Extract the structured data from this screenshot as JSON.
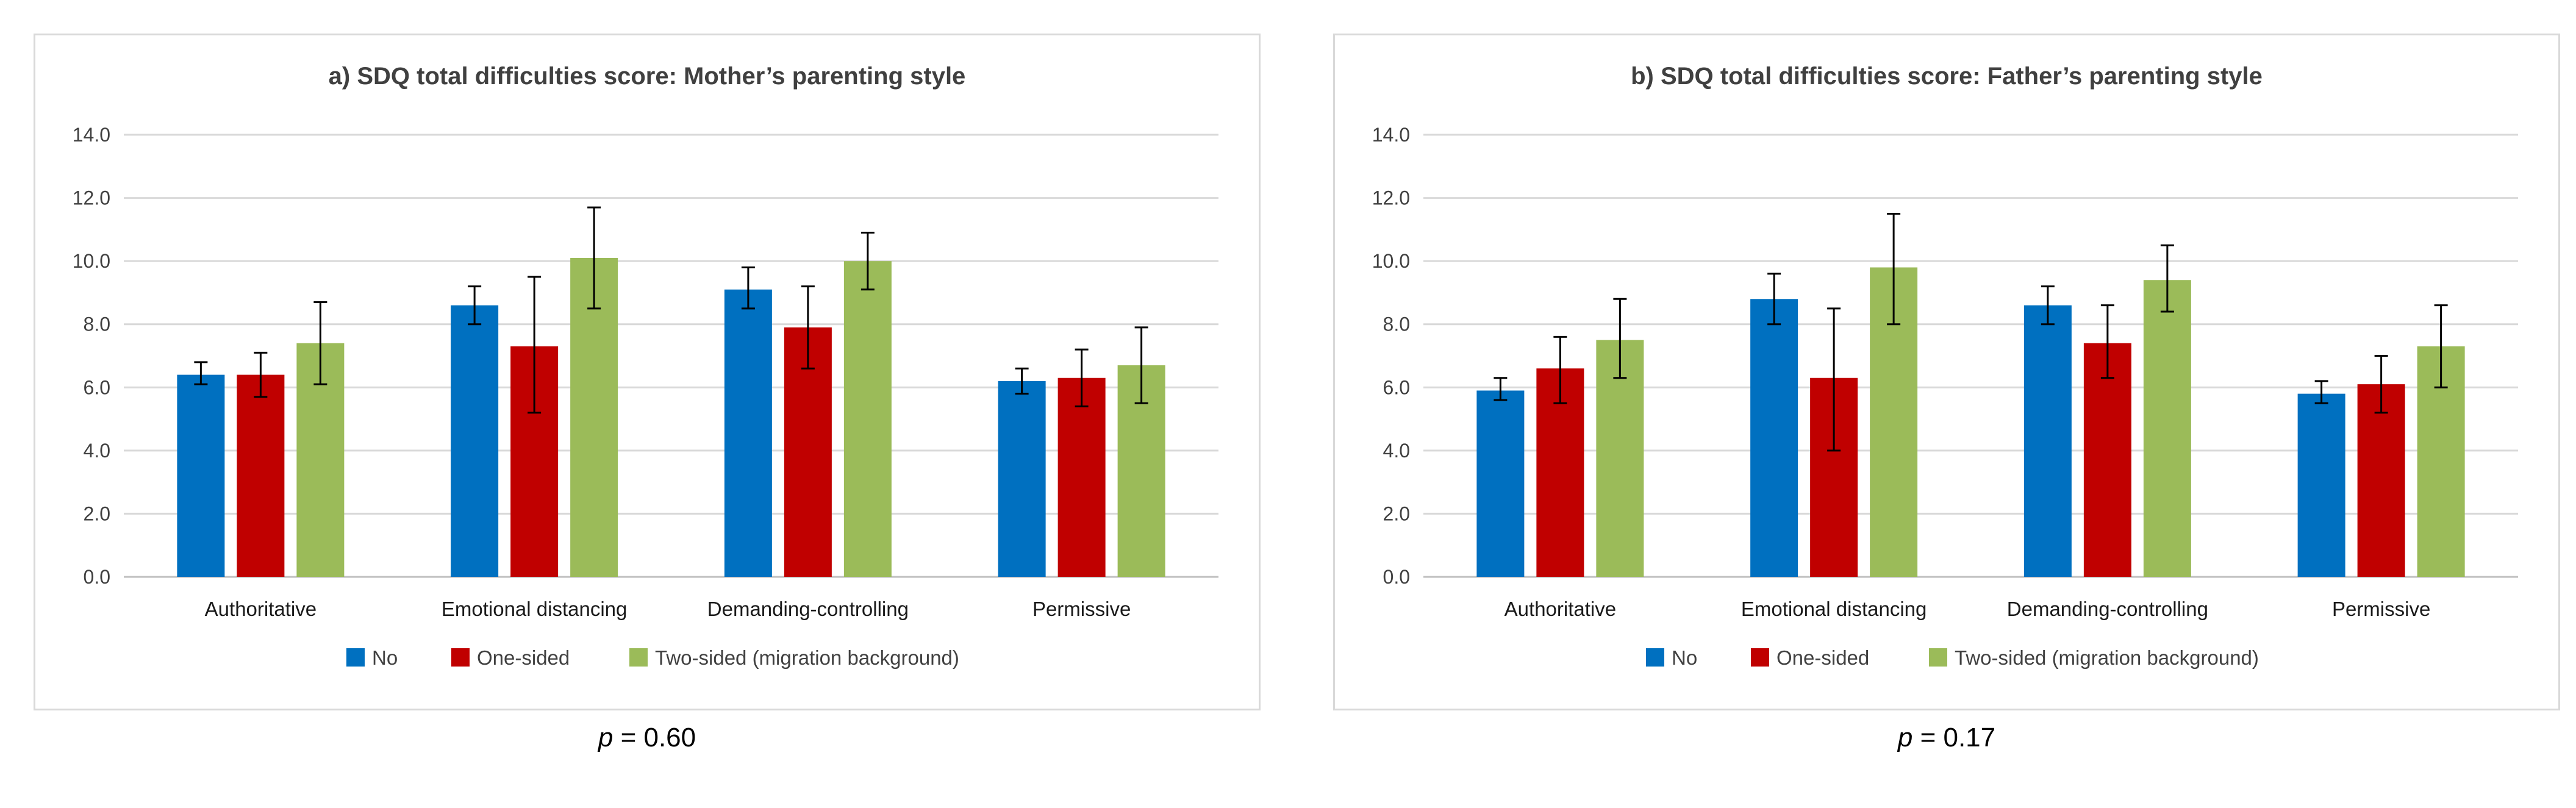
{
  "colors": {
    "No": "#0070c0",
    "One-sided": "#c00000",
    "Two-sided (migration background)": "#9bbb59",
    "grid": "#d9d9d9",
    "axis": "#bfbfbf",
    "error": "#000000"
  },
  "chart_data": [
    {
      "type": "bar",
      "title": "a) SDQ total difficulties score: Mother’s parenting style",
      "xlabel": "",
      "ylabel": "",
      "ylim": [
        0,
        14
      ],
      "yticks": [
        "0.0",
        "2.0",
        "4.0",
        "6.0",
        "8.0",
        "10.0",
        "12.0",
        "14.0"
      ],
      "categories": [
        "Authoritative",
        "Emotional distancing",
        "Demanding-controlling",
        "Permissive"
      ],
      "series": [
        {
          "name": "No",
          "values": [
            6.4,
            8.6,
            9.1,
            6.2
          ],
          "err_low": [
            6.1,
            8.0,
            8.5,
            5.8
          ],
          "err_high": [
            6.8,
            9.2,
            9.8,
            6.6
          ]
        },
        {
          "name": "One-sided",
          "values": [
            6.4,
            7.3,
            7.9,
            6.3
          ],
          "err_low": [
            5.7,
            5.2,
            6.6,
            5.4
          ],
          "err_high": [
            7.1,
            9.5,
            9.2,
            7.2
          ]
        },
        {
          "name": "Two-sided  (migration background)",
          "values": [
            7.4,
            10.1,
            10.0,
            6.7
          ],
          "err_low": [
            6.1,
            8.5,
            9.1,
            5.5
          ],
          "err_high": [
            8.7,
            11.7,
            10.9,
            7.9
          ]
        }
      ],
      "legend_position": "bottom",
      "p_value": "p = 0.60"
    },
    {
      "type": "bar",
      "title": "b) SDQ total difficulties score: Father’s parenting style",
      "xlabel": "",
      "ylabel": "",
      "ylim": [
        0,
        14
      ],
      "yticks": [
        "0.0",
        "2.0",
        "4.0",
        "6.0",
        "8.0",
        "10.0",
        "12.0",
        "14.0"
      ],
      "categories": [
        "Authoritative",
        "Emotional distancing",
        "Demanding-controlling",
        "Permissive"
      ],
      "series": [
        {
          "name": "No",
          "values": [
            5.9,
            8.8,
            8.6,
            5.8
          ],
          "err_low": [
            5.6,
            8.0,
            8.0,
            5.5
          ],
          "err_high": [
            6.3,
            9.6,
            9.2,
            6.2
          ]
        },
        {
          "name": "One-sided",
          "values": [
            6.6,
            6.3,
            7.4,
            6.1
          ],
          "err_low": [
            5.5,
            4.0,
            6.3,
            5.2
          ],
          "err_high": [
            7.6,
            8.5,
            8.6,
            7.0
          ]
        },
        {
          "name": "Two-sided (migration background)",
          "values": [
            7.5,
            9.8,
            9.4,
            7.3
          ],
          "err_low": [
            6.3,
            8.0,
            8.4,
            6.0
          ],
          "err_high": [
            8.8,
            11.5,
            10.5,
            8.6
          ]
        }
      ],
      "legend_position": "bottom",
      "p_value": "p = 0.17"
    }
  ],
  "pvalues": [
    {
      "symbol": "p",
      "rest": " = 0.60"
    },
    {
      "symbol": "p",
      "rest": " = 0.17"
    }
  ]
}
